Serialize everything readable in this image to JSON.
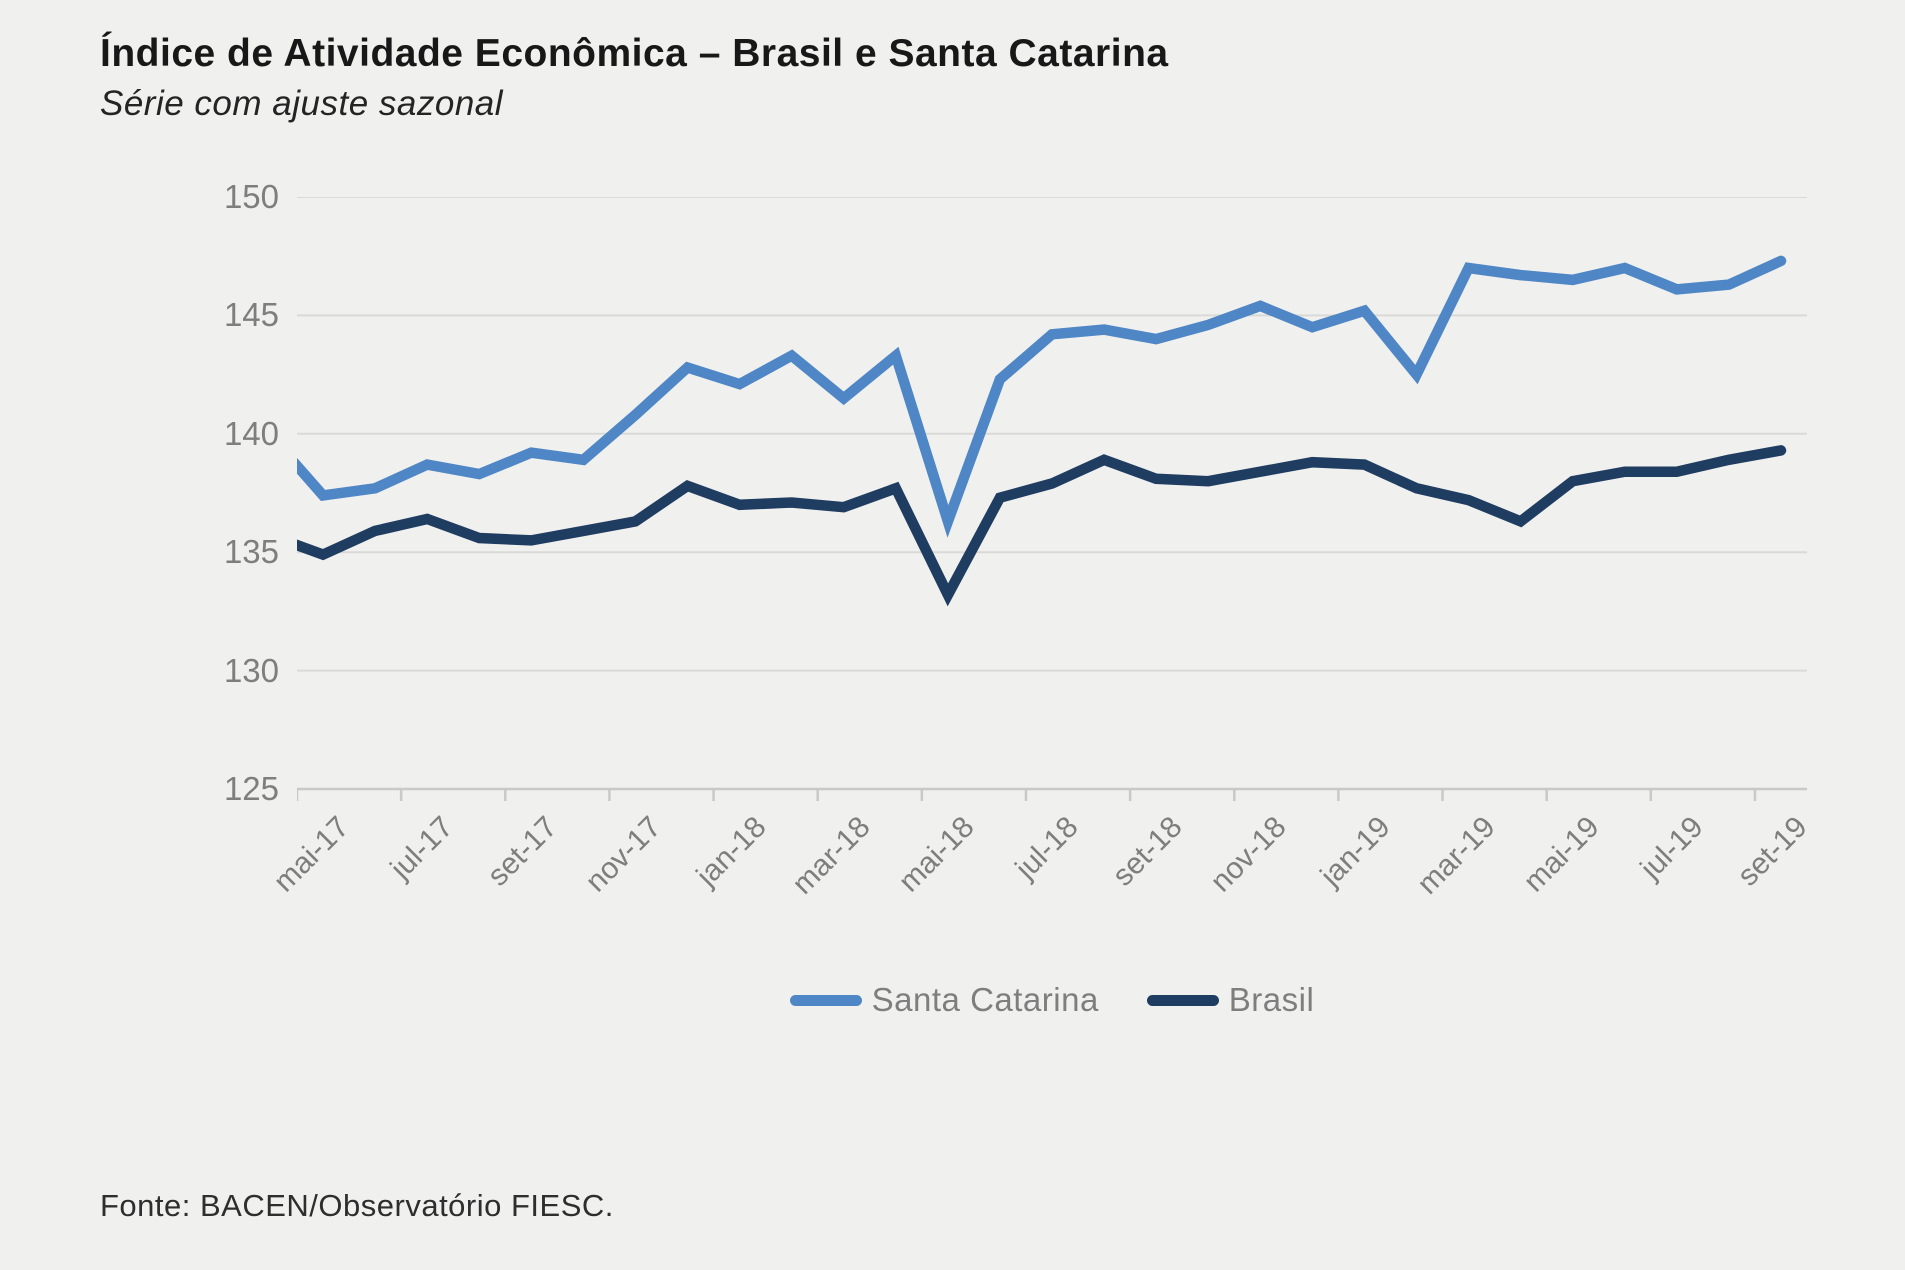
{
  "header": {
    "title": "Índice de Atividade Econômica – Brasil e Santa Catarina",
    "subtitle": "Série com ajuste sazonal"
  },
  "source_note": "Fonte: BACEN/Observatório FIESC.",
  "colors": {
    "santa_catarina": "#4f86c6",
    "brasil": "#1f3c61",
    "gridline": "#d9d9d7",
    "axis": "#c9c9c7",
    "tick_label": "#7e7e7e",
    "background": "#f0f0ee"
  },
  "legend": {
    "position": "bottom-center",
    "items": [
      {
        "label": "Santa Catarina",
        "color": "#4f86c6"
      },
      {
        "label": "Brasil",
        "color": "#1f3c61"
      }
    ]
  },
  "chart_data": {
    "type": "line",
    "title": "Índice de Atividade Econômica – Brasil e Santa Catarina",
    "subtitle": "Série com ajuste sazonal",
    "x": [
      "abr-17",
      "mai-17",
      "jun-17",
      "jul-17",
      "ago-17",
      "set-17",
      "out-17",
      "nov-17",
      "dez-17",
      "jan-18",
      "fev-18",
      "mar-18",
      "abr-18",
      "mai-18",
      "jun-18",
      "jul-18",
      "ago-18",
      "set-18",
      "out-18",
      "nov-18",
      "dez-18",
      "jan-19",
      "fev-19",
      "mar-19",
      "abr-19",
      "mai-19",
      "jun-19",
      "jul-19",
      "ago-19",
      "set-19"
    ],
    "x_tick_labels_shown": [
      "mai-17",
      "jul-17",
      "set-17",
      "nov-17",
      "jan-18",
      "mar-18",
      "mai-18",
      "jul-18",
      "set-18",
      "nov-18",
      "jan-19",
      "mar-19",
      "mai-19",
      "jul-19",
      "set-19"
    ],
    "series": [
      {
        "name": "Santa Catarina",
        "color": "#4f86c6",
        "values": [
          139.9,
          137.4,
          137.7,
          138.7,
          138.3,
          139.2,
          138.9,
          140.8,
          142.8,
          142.1,
          143.3,
          141.5,
          143.3,
          136.3,
          142.3,
          144.2,
          144.4,
          144.0,
          144.6,
          145.4,
          144.5,
          145.2,
          142.5,
          147.0,
          146.7,
          146.5,
          147.0,
          146.1,
          146.3,
          147.3
        ]
      },
      {
        "name": "Brasil",
        "color": "#1f3c61",
        "values": [
          135.7,
          134.9,
          135.9,
          136.4,
          135.6,
          135.5,
          135.9,
          136.3,
          137.8,
          137.0,
          137.1,
          136.9,
          137.7,
          133.2,
          137.3,
          137.9,
          138.9,
          138.1,
          138.0,
          138.4,
          138.8,
          138.7,
          137.7,
          137.2,
          136.3,
          138.0,
          138.4,
          138.4,
          138.9,
          139.3
        ]
      }
    ],
    "ylim": [
      125,
      150
    ],
    "y_tick_step": 5,
    "y_tick_labels": [
      "150",
      "145",
      "140",
      "135",
      "130",
      "125"
    ],
    "grid": "horizontal",
    "legend_position": "bottom",
    "note": "First point (abr-17) sits half a category before the plot edge and is partially clipped, as in the source image."
  }
}
